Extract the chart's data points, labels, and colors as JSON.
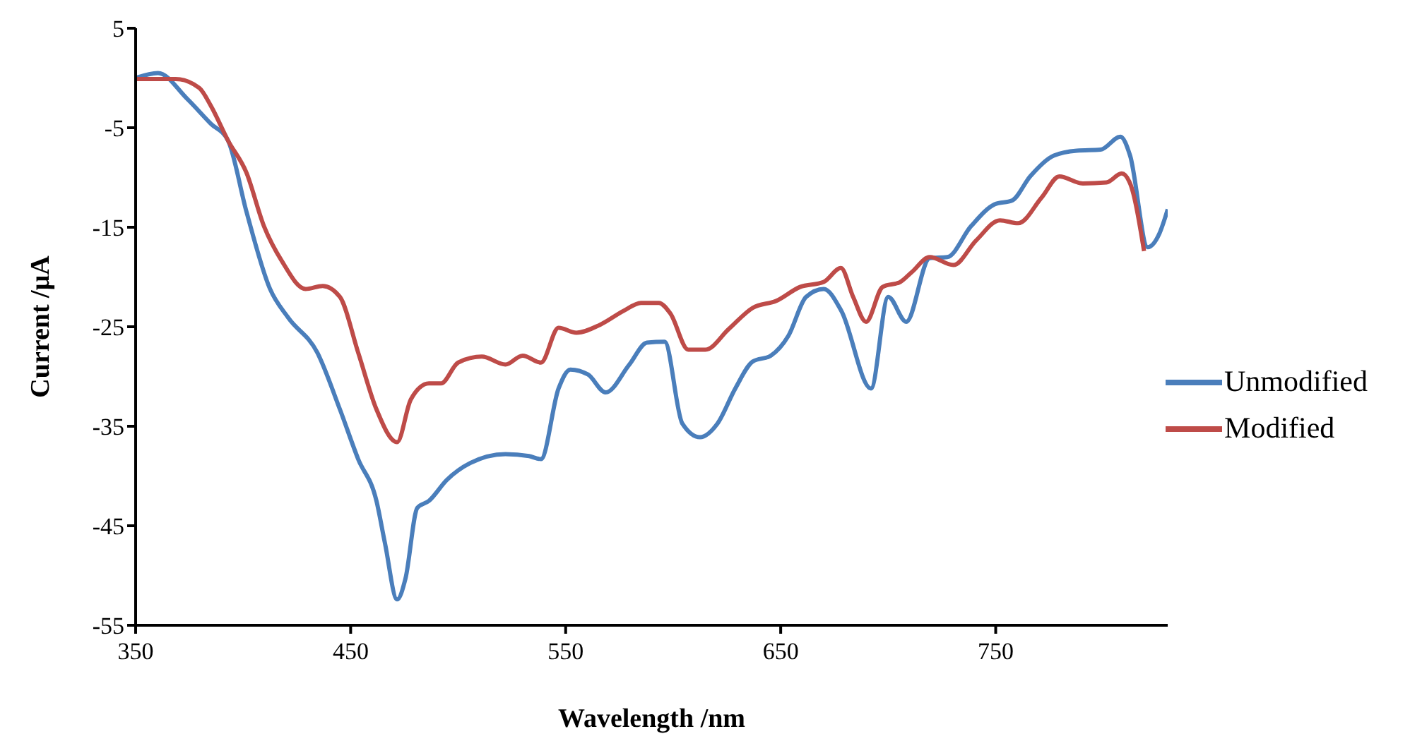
{
  "chart_data": {
    "type": "line",
    "xlabel": "Wavelength /nm",
    "ylabel": "Current /μA",
    "xlim": [
      350,
      830
    ],
    "xticks": [
      350,
      450,
      550,
      650,
      750
    ],
    "ylim": [
      -55,
      5
    ],
    "yticks": [
      5,
      -5,
      -15,
      -25,
      -35,
      -45,
      -55
    ],
    "grid": false,
    "legend": "right",
    "marker": "none",
    "line_style": "solid",
    "series": [
      {
        "name": "Unmodified",
        "color": "#4a7ebb",
        "x": [
          350,
          360.4,
          374,
          385,
          393,
          401.5,
          412.5,
          421,
          434.5,
          445,
          453.5,
          462,
          466,
          471.6,
          475.5,
          481,
          486.4,
          494.7,
          505.6,
          522,
          533,
          538.5,
          546.7,
          552.2,
          560.4,
          568.6,
          579.6,
          587.8,
          596,
          604.2,
          612.5,
          620.7,
          628.9,
          637,
          645.4,
          653.6,
          661.8,
          670,
          678.2,
          692,
          700,
          708.4,
          719.3,
          727.5,
          738.5,
          749.5,
          757.7,
          766,
          777,
          787.8,
          798.8,
          808,
          812.5,
          820.7,
          826.2,
          830
        ],
        "values": [
          0,
          0.5,
          -2.1,
          -4.6,
          -6.3,
          -13.4,
          -21.2,
          -24.1,
          -27.6,
          -33.3,
          -38.3,
          -42.5,
          -46.8,
          -52.4,
          -50.3,
          -43.2,
          -42.5,
          -40.4,
          -38.7,
          -37.8,
          -38,
          -38.3,
          -31.2,
          -29.3,
          -29.8,
          -31.6,
          -28.8,
          -26.6,
          -26.5,
          -34.7,
          -36.1,
          -34.7,
          -31.2,
          -28.5,
          -27.9,
          -25.9,
          -22,
          -21.2,
          -23.4,
          -31.2,
          -22,
          -24.5,
          -18.1,
          -18,
          -14.9,
          -12.7,
          -12.3,
          -9.9,
          -7.8,
          -7.3,
          -7.2,
          -5.9,
          -7.8,
          -17,
          -15.6,
          -13.2
        ]
      },
      {
        "name": "Modified",
        "color": "#be4b48",
        "x": [
          350,
          368.6,
          379.6,
          385,
          393,
          401.5,
          409.7,
          418,
          429,
          437,
          445,
          453.5,
          462,
          471.6,
          478,
          486.4,
          492,
          500,
          511,
          522,
          530,
          538.5,
          546.7,
          555,
          566,
          577,
          585,
          593.3,
          598.8,
          607,
          615,
          626,
          637,
          648,
          659,
          670,
          678,
          683.7,
          689.7,
          697.4,
          705.6,
          711,
          719.3,
          730.3,
          741,
          752,
          760.4,
          771.4,
          779.6,
          790.5,
          801.5,
          808.6,
          812.5,
          819
        ],
        "values": [
          -0.1,
          -0.1,
          -1,
          -2.8,
          -6.3,
          -9.5,
          -14.9,
          -18.4,
          -21.2,
          -20.9,
          -22,
          -27.6,
          -33.3,
          -36.6,
          -32.3,
          -30.7,
          -30.7,
          -28.6,
          -28,
          -28.8,
          -27.9,
          -28.6,
          -25.1,
          -25.6,
          -24.8,
          -23.4,
          -22.6,
          -22.6,
          -23.7,
          -27.3,
          -27.3,
          -25.2,
          -23.1,
          -22.4,
          -21,
          -20.5,
          -19.1,
          -22,
          -24.5,
          -21,
          -20.5,
          -19.5,
          -18,
          -18.8,
          -16.3,
          -14.3,
          -14.6,
          -12,
          -9.9,
          -10.6,
          -10.5,
          -9.6,
          -10.6,
          -17.4
        ]
      }
    ]
  }
}
